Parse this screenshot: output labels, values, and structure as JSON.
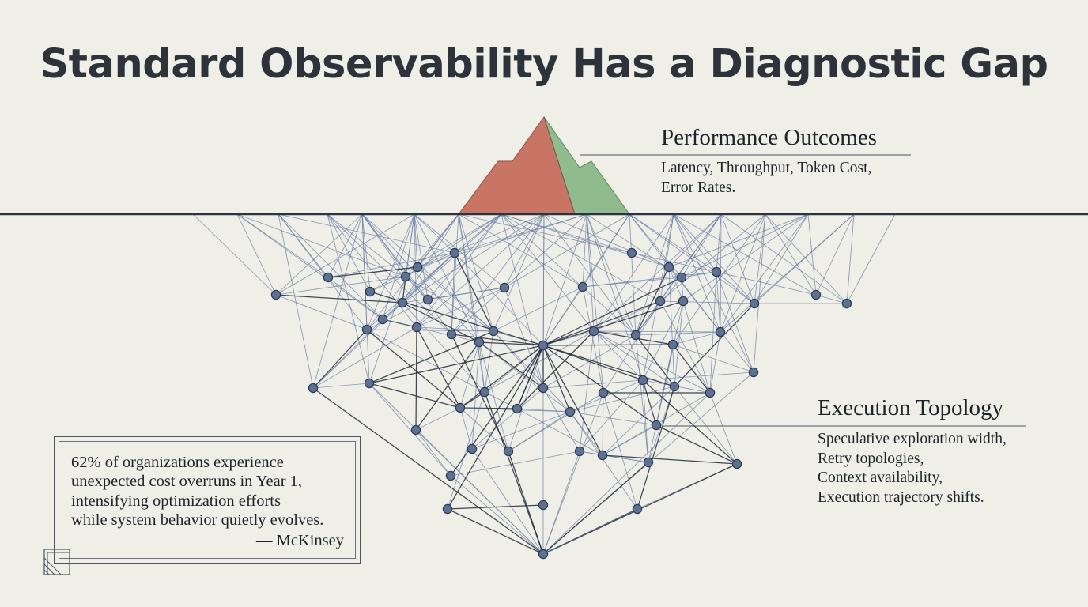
{
  "title": "Standard Observability Has a Diagnostic Gap",
  "performance": {
    "heading": "Performance Outcomes",
    "lines": [
      "Latency, Throughput, Token Cost,",
      "Error Rates."
    ]
  },
  "execution": {
    "heading": "Execution Topology",
    "lines": [
      "Speculative exploration width,",
      "Retry topologies,",
      "Context availability,",
      "Execution trajectory shifts."
    ]
  },
  "quote": {
    "lines": [
      "62% of organizations experience",
      "unexpected cost overruns in Year 1,",
      "intensifying optimization efforts",
      "while system behavior quietly evolves."
    ],
    "attribution": "— McKinsey"
  },
  "colors": {
    "background": "#efeee7",
    "peak_left": "#c97566",
    "peak_right": "#8fbb8e",
    "waterline": "#2b3442",
    "edge": "#5b75a0",
    "edge_dark": "#1f2a3a",
    "node": "#5d7194"
  }
}
